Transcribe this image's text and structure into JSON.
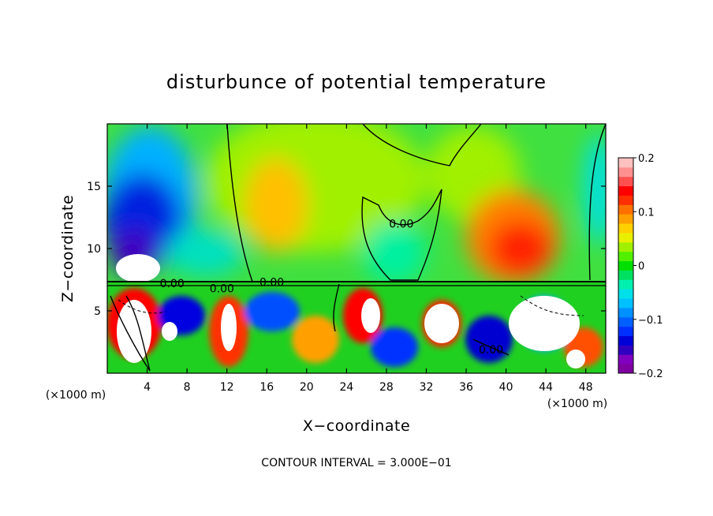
{
  "chart_data": {
    "type": "heatmap",
    "title": "disturbunce of potential temperature",
    "xlabel": "X−coordinate",
    "ylabel": "Z−coordinate",
    "x_unit": "(×1000 m)",
    "x_unit_right": "(×1000 m)",
    "xlim": [
      0,
      50
    ],
    "ylim": [
      0,
      20
    ],
    "x_ticks": [
      4,
      8,
      12,
      16,
      20,
      24,
      28,
      32,
      36,
      40,
      44,
      48
    ],
    "x_tick_labels": [
      "4",
      "8",
      "12",
      "16",
      "20",
      "24",
      "28",
      "32",
      "36",
      "40",
      "44",
      "48"
    ],
    "y_ticks": [
      5,
      10,
      15
    ],
    "y_tick_labels": [
      "5",
      "10",
      "15"
    ],
    "colorbar": {
      "range": [
        -0.2,
        0.2
      ],
      "tick_values": [
        0.2,
        0.1,
        0,
        -0.1,
        -0.2
      ],
      "tick_labels": [
        "0.2",
        "0.1",
        "0",
        "−0.1",
        "−0.2"
      ],
      "colors": [
        "#7f00a0",
        "#8000c0",
        "#3000c0",
        "#0000d8",
        "#0030ff",
        "#0060ff",
        "#0090ff",
        "#00c0ff",
        "#00e0e8",
        "#00f0b0",
        "#00e060",
        "#00e000",
        "#50f000",
        "#a0f000",
        "#e8f000",
        "#ffd000",
        "#ffa000",
        "#ff7000",
        "#ff3000",
        "#ff0000",
        "#ff5050",
        "#ff9090",
        "#ffc0c0"
      ]
    },
    "contour_labels": [
      {
        "x": 6.5,
        "z": 7.2,
        "text": "0.00"
      },
      {
        "x": 11.5,
        "z": 6.8,
        "text": "0.00"
      },
      {
        "x": 16.5,
        "z": 7.3,
        "text": "0.00"
      },
      {
        "x": 29.5,
        "z": 12.0,
        "text": "0.00"
      },
      {
        "x": 38.5,
        "z": 1.9,
        "text": "0.00"
      }
    ],
    "contour_interval_text": "CONTOUR INTERVAL =  3.000E−01"
  }
}
